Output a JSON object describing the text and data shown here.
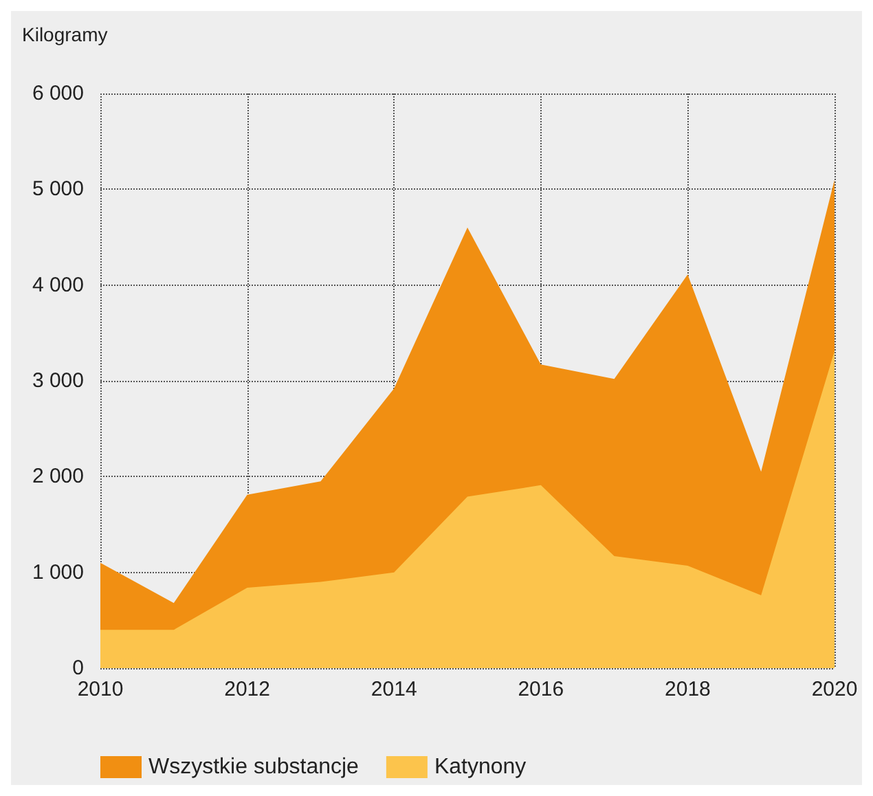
{
  "chart_data": {
    "type": "area",
    "ylabel": "Kilogramy",
    "x": [
      2010,
      2011,
      2012,
      2013,
      2014,
      2015,
      2016,
      2017,
      2018,
      2019,
      2020
    ],
    "series": [
      {
        "name": "Wszystkie substancje",
        "color": "#f18f12",
        "values": [
          1100,
          680,
          1810,
          1950,
          2920,
          4600,
          3170,
          3020,
          4110,
          2050,
          5100
        ]
      },
      {
        "name": "Katynony",
        "color": "#fcc44c",
        "values": [
          400,
          400,
          840,
          900,
          1000,
          1790,
          1910,
          1170,
          1070,
          760,
          3310
        ]
      }
    ],
    "xlim": [
      2010,
      2020
    ],
    "xticks": [
      2010,
      2012,
      2014,
      2016,
      2018,
      2020
    ],
    "ylim": [
      0,
      6000
    ],
    "yticks": [
      {
        "value": 0,
        "label": "0"
      },
      {
        "value": 1000,
        "label": "1 000"
      },
      {
        "value": 2000,
        "label": "2 000"
      },
      {
        "value": 3000,
        "label": "3 000"
      },
      {
        "value": 4000,
        "label": "4 000"
      },
      {
        "value": 5000,
        "label": "5 000"
      },
      {
        "value": 6000,
        "label": "6 000"
      }
    ],
    "grid": true,
    "legend": "bottom"
  }
}
